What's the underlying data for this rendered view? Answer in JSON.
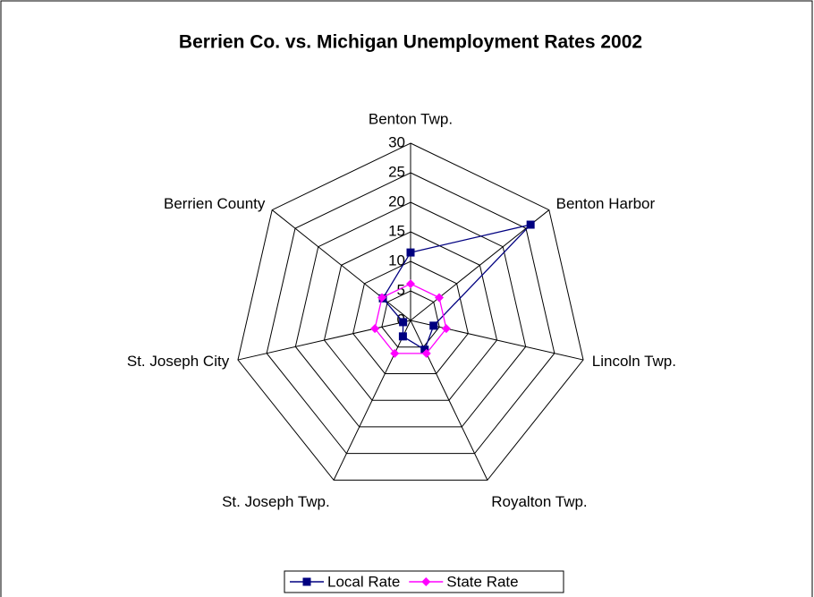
{
  "chart_data": {
    "type": "radar",
    "title": "Berrien Co. vs. Michigan Unemployment Rates 2002",
    "categories": [
      "Benton Twp.",
      "Benton Harbor",
      "Lincoln Twp.",
      "Royalton Twp.",
      "St. Joseph Twp.",
      "St. Joseph City",
      "Berrien County"
    ],
    "series": [
      {
        "name": "Local Rate",
        "color": "#000080",
        "marker": "square",
        "values": [
          11.5,
          26,
          4,
          5.5,
          3,
          1.3,
          6
        ]
      },
      {
        "name": "State Rate",
        "color": "#ff00ff",
        "marker": "diamond",
        "values": [
          6.2,
          6.2,
          6.2,
          6.2,
          6.2,
          6.2,
          6.2
        ]
      }
    ],
    "rlim": [
      0,
      30
    ],
    "rticks": [
      0,
      5,
      10,
      15,
      20,
      25,
      30
    ],
    "grid": true,
    "legend": "bottom"
  }
}
